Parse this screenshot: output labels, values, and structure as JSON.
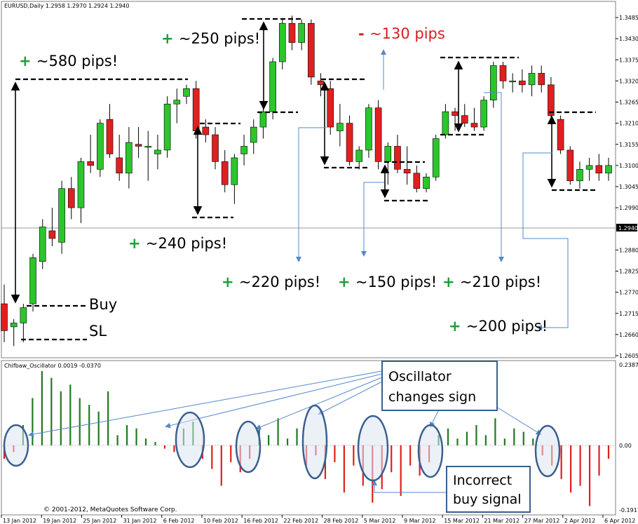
{
  "chart_data": [
    {
      "type": "candlestick",
      "title": "EURUSD,Daily  1.2958 1.2970 1.2924 1.2940",
      "ylim": [
        1.2605,
        1.3485
      ],
      "y_ticks": [
        "1.3485",
        "1.3430",
        "1.3375",
        "1.3320",
        "1.3265",
        "1.3210",
        "1.3155",
        "1.3100",
        "1.3045",
        "1.2990",
        "1.2880",
        "1.2825",
        "1.2770",
        "1.2715",
        "1.2660",
        "1.2605"
      ],
      "current_price_label": "1.2940",
      "current_price": 1.294,
      "x_labels": [
        "13 Jan 2012",
        "19 Jan 2012",
        "25 Jan 2012",
        "31 Jan 2012",
        "6 Feb 2012",
        "10 Feb 2012",
        "16 Feb 2012",
        "22 Feb 2012",
        "28 Feb 2012",
        "5 Mar 2012",
        "9 Mar 2012",
        "15 Mar 2012",
        "21 Mar 2012",
        "27 Mar 2012",
        "2 Apr 2012",
        "6 Apr 2012"
      ],
      "candles": [
        {
          "o": 1.274,
          "h": 1.279,
          "l": 1.264,
          "c": 1.267
        },
        {
          "o": 1.268,
          "h": 1.27,
          "l": 1.263,
          "c": 1.269
        },
        {
          "o": 1.269,
          "h": 1.274,
          "l": 1.264,
          "c": 1.273
        },
        {
          "o": 1.274,
          "h": 1.287,
          "l": 1.272,
          "c": 1.286
        },
        {
          "o": 1.285,
          "h": 1.296,
          "l": 1.283,
          "c": 1.294
        },
        {
          "o": 1.293,
          "h": 1.299,
          "l": 1.289,
          "c": 1.291
        },
        {
          "o": 1.29,
          "h": 1.306,
          "l": 1.287,
          "c": 1.304
        },
        {
          "o": 1.304,
          "h": 1.307,
          "l": 1.296,
          "c": 1.299
        },
        {
          "o": 1.299,
          "h": 1.312,
          "l": 1.295,
          "c": 1.311
        },
        {
          "o": 1.311,
          "h": 1.318,
          "l": 1.308,
          "c": 1.31
        },
        {
          "o": 1.309,
          "h": 1.322,
          "l": 1.307,
          "c": 1.321
        },
        {
          "o": 1.322,
          "h": 1.326,
          "l": 1.312,
          "c": 1.313
        },
        {
          "o": 1.312,
          "h": 1.318,
          "l": 1.306,
          "c": 1.308
        },
        {
          "o": 1.308,
          "h": 1.32,
          "l": 1.304,
          "c": 1.316
        },
        {
          "o": 1.3155,
          "h": 1.32,
          "l": 1.312,
          "c": 1.315
        },
        {
          "o": 1.315,
          "h": 1.319,
          "l": 1.306,
          "c": 1.315
        },
        {
          "o": 1.313,
          "h": 1.318,
          "l": 1.309,
          "c": 1.314
        },
        {
          "o": 1.314,
          "h": 1.328,
          "l": 1.312,
          "c": 1.326
        },
        {
          "o": 1.326,
          "h": 1.33,
          "l": 1.321,
          "c": 1.327
        },
        {
          "o": 1.328,
          "h": 1.331,
          "l": 1.326,
          "c": 1.33
        },
        {
          "o": 1.33,
          "h": 1.332,
          "l": 1.317,
          "c": 1.319
        },
        {
          "o": 1.32,
          "h": 1.322,
          "l": 1.316,
          "c": 1.318
        },
        {
          "o": 1.318,
          "h": 1.32,
          "l": 1.309,
          "c": 1.311
        },
        {
          "o": 1.311,
          "h": 1.314,
          "l": 1.303,
          "c": 1.305
        },
        {
          "o": 1.305,
          "h": 1.313,
          "l": 1.3,
          "c": 1.312
        },
        {
          "o": 1.313,
          "h": 1.318,
          "l": 1.31,
          "c": 1.315
        },
        {
          "o": 1.316,
          "h": 1.322,
          "l": 1.313,
          "c": 1.32
        },
        {
          "o": 1.32,
          "h": 1.326,
          "l": 1.317,
          "c": 1.324
        },
        {
          "o": 1.324,
          "h": 1.338,
          "l": 1.322,
          "c": 1.337
        },
        {
          "o": 1.337,
          "h": 1.348,
          "l": 1.335,
          "c": 1.347
        },
        {
          "o": 1.347,
          "h": 1.349,
          "l": 1.34,
          "c": 1.342
        },
        {
          "o": 1.342,
          "h": 1.348,
          "l": 1.34,
          "c": 1.347
        },
        {
          "o": 1.347,
          "h": 1.348,
          "l": 1.331,
          "c": 1.333
        },
        {
          "o": 1.332,
          "h": 1.334,
          "l": 1.328,
          "c": 1.331
        },
        {
          "o": 1.33,
          "h": 1.332,
          "l": 1.318,
          "c": 1.32
        },
        {
          "o": 1.319,
          "h": 1.326,
          "l": 1.315,
          "c": 1.321
        },
        {
          "o": 1.321,
          "h": 1.323,
          "l": 1.31,
          "c": 1.311
        },
        {
          "o": 1.311,
          "h": 1.315,
          "l": 1.309,
          "c": 1.314
        },
        {
          "o": 1.314,
          "h": 1.326,
          "l": 1.312,
          "c": 1.325
        },
        {
          "o": 1.325,
          "h": 1.327,
          "l": 1.309,
          "c": 1.311
        },
        {
          "o": 1.311,
          "h": 1.316,
          "l": 1.305,
          "c": 1.315
        },
        {
          "o": 1.315,
          "h": 1.318,
          "l": 1.308,
          "c": 1.309
        },
        {
          "o": 1.309,
          "h": 1.315,
          "l": 1.305,
          "c": 1.308
        },
        {
          "o": 1.308,
          "h": 1.31,
          "l": 1.303,
          "c": 1.304
        },
        {
          "o": 1.304,
          "h": 1.308,
          "l": 1.303,
          "c": 1.307
        },
        {
          "o": 1.307,
          "h": 1.318,
          "l": 1.306,
          "c": 1.317
        },
        {
          "o": 1.318,
          "h": 1.326,
          "l": 1.317,
          "c": 1.324
        },
        {
          "o": 1.324,
          "h": 1.325,
          "l": 1.319,
          "c": 1.323
        },
        {
          "o": 1.323,
          "h": 1.326,
          "l": 1.32,
          "c": 1.321
        },
        {
          "o": 1.321,
          "h": 1.325,
          "l": 1.319,
          "c": 1.32
        },
        {
          "o": 1.32,
          "h": 1.328,
          "l": 1.319,
          "c": 1.327
        },
        {
          "o": 1.327,
          "h": 1.337,
          "l": 1.325,
          "c": 1.336
        },
        {
          "o": 1.336,
          "h": 1.337,
          "l": 1.33,
          "c": 1.332
        },
        {
          "o": 1.332,
          "h": 1.334,
          "l": 1.329,
          "c": 1.332
        },
        {
          "o": 1.332,
          "h": 1.335,
          "l": 1.329,
          "c": 1.331
        },
        {
          "o": 1.331,
          "h": 1.336,
          "l": 1.328,
          "c": 1.334
        },
        {
          "o": 1.334,
          "h": 1.336,
          "l": 1.329,
          "c": 1.331
        },
        {
          "o": 1.331,
          "h": 1.333,
          "l": 1.322,
          "c": 1.323
        },
        {
          "o": 1.322,
          "h": 1.323,
          "l": 1.313,
          "c": 1.314
        },
        {
          "o": 1.314,
          "h": 1.315,
          "l": 1.305,
          "c": 1.306
        },
        {
          "o": 1.306,
          "h": 1.311,
          "l": 1.304,
          "c": 1.309
        },
        {
          "o": 1.309,
          "h": 1.312,
          "l": 1.306,
          "c": 1.31
        },
        {
          "o": 1.31,
          "h": 1.313,
          "l": 1.306,
          "c": 1.308
        },
        {
          "o": 1.308,
          "h": 1.312,
          "l": 1.306,
          "c": 1.31
        }
      ],
      "annotations": [
        {
          "sign": "+",
          "text": "~580 pips!"
        },
        {
          "sign": "+",
          "text": "~250 pips!"
        },
        {
          "sign": "-",
          "text": "~130 pips"
        },
        {
          "sign": "+",
          "text": "~240 pips!"
        },
        {
          "sign": "+",
          "text": "~220 pips!"
        },
        {
          "sign": "+",
          "text": "~150 pips!"
        },
        {
          "sign": "+",
          "text": "~210 pips!"
        },
        {
          "sign": "+",
          "text": "~200 pips!"
        }
      ],
      "markers": {
        "buy": "Buy",
        "sl": "SL"
      }
    },
    {
      "type": "bar",
      "title": "Chifbaw_Oscillator 0.0019 -0.0370",
      "ylim": [
        -0.1917,
        0.2387
      ],
      "y_ticks": [
        "0.2387",
        "0.00",
        "-0.1917"
      ],
      "values": [
        -0.04,
        -0.02,
        0.06,
        0.14,
        0.22,
        0.2,
        0.16,
        0.18,
        0.14,
        0.12,
        0.1,
        0.16,
        0.03,
        0.06,
        0.05,
        0.02,
        0.01,
        -0.01,
        -0.02,
        0.05,
        0.07,
        -0.04,
        -0.07,
        -0.12,
        -0.05,
        -0.08,
        -0.04,
        0.05,
        0.03,
        0.08,
        0.02,
        0.05,
        -0.06,
        -0.03,
        -0.1,
        -0.05,
        -0.14,
        -0.06,
        -0.12,
        -0.17,
        -0.13,
        -0.08,
        -0.15,
        -0.06,
        -0.09,
        -0.05,
        0.03,
        0.05,
        0.02,
        0.04,
        0.06,
        0.03,
        0.08,
        0.02,
        0.05,
        0.04,
        0.02,
        -0.03,
        -0.06,
        -0.1,
        -0.14,
        -0.12,
        -0.18,
        -0.09,
        -0.04
      ],
      "callouts": {
        "sign_change": "Oscillator changes sign",
        "incorrect": "Incorrect buy signal"
      },
      "watermark": "© 2001-2012, MetaQuotes Software Corp."
    }
  ],
  "colors": {
    "bull": "#2BC62B",
    "bear": "#E0201E",
    "osc_pos": "#1E7A1E",
    "osc_neg": "#E0201E",
    "annotation_plus": "#1E9E3E",
    "annotation_minus": "#D42020",
    "arrow_blue": "#5588C8",
    "ellipse": "#3A5F8F"
  }
}
